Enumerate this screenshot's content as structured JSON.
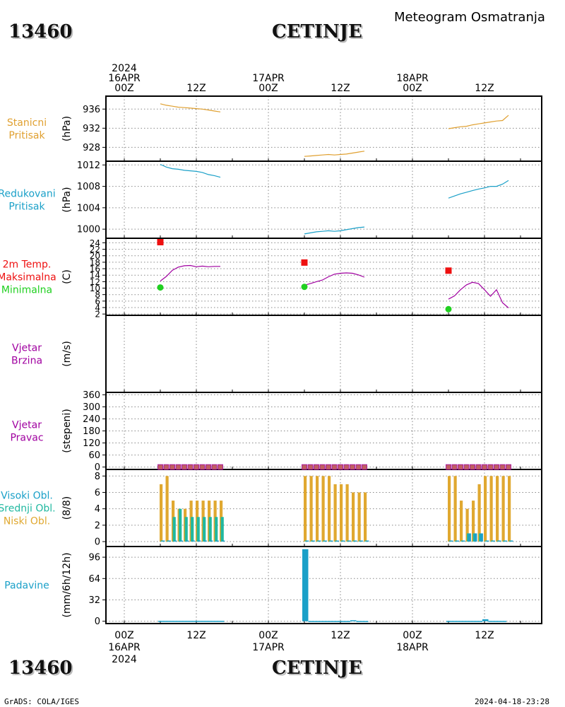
{
  "header": {
    "station_id": "13460",
    "station_name": "CETINJE",
    "chart_title": "Meteogram Osmatranja"
  },
  "footer": {
    "station_id": "13460",
    "station_name": "CETINJE",
    "credit": "GrADS: COLA/IGES",
    "timestamp": "2024-04-18-23:28"
  },
  "time_axis": {
    "top_labels": [
      {
        "lines": [
          "2024",
          "16APR",
          "00Z"
        ]
      },
      {
        "lines": [
          "12Z"
        ]
      },
      {
        "lines": [
          "17APR",
          "00Z"
        ]
      },
      {
        "lines": [
          "12Z"
        ]
      },
      {
        "lines": [
          "18APR",
          "00Z"
        ]
      },
      {
        "lines": [
          "12Z"
        ]
      }
    ],
    "bottom_labels": [
      {
        "lines": [
          "00Z",
          "16APR",
          "2024"
        ]
      },
      {
        "lines": [
          "12Z"
        ]
      },
      {
        "lines": [
          "00Z",
          "17APR"
        ]
      },
      {
        "lines": [
          "12Z"
        ]
      },
      {
        "lines": [
          "00Z",
          "18APR"
        ]
      },
      {
        "lines": [
          "12Z"
        ]
      }
    ]
  },
  "colors": {
    "station_pressure": "#E0A030",
    "reduced_pressure": "#1AA0C8",
    "temperature": "#A000A0",
    "t_max": "#EE1010",
    "t_min": "#20D020",
    "wind": "#A000A0",
    "cloud_low": "#E0A830",
    "cloud_mid": "#20B8A0",
    "cloud_high": "#1AA0C8",
    "precip": "#1AA0C8",
    "grid": "#888888"
  },
  "panels": [
    {
      "key": "stp",
      "labels": [
        "Stanicni",
        "Pritisak"
      ],
      "label_colors": [
        "#E0A030",
        "#E0A030"
      ],
      "unit": "(hPa)",
      "ticks": [
        "936",
        "932",
        "928"
      ]
    },
    {
      "key": "rp",
      "labels": [
        "Redukovani",
        "Pritisak"
      ],
      "label_colors": [
        "#1AA0C8",
        "#1AA0C8"
      ],
      "unit": "(hPa)",
      "ticks": [
        "1012",
        "1008",
        "1004",
        "1000"
      ]
    },
    {
      "key": "t",
      "labels": [
        "2m Temp.",
        "Maksimalna",
        "Minimalna"
      ],
      "label_colors": [
        "#EE1010",
        "#EE1010",
        "#20D020"
      ],
      "unit": "(C)",
      "ticks": [
        "24",
        "22",
        "20",
        "18",
        "16",
        "14",
        "12",
        "10",
        "8",
        "6",
        "4",
        "2"
      ]
    },
    {
      "key": "ws",
      "labels": [
        "Vjetar",
        "Brzina"
      ],
      "label_colors": [
        "#A000A0",
        "#A000A0"
      ],
      "unit": "(m/s)",
      "ticks": []
    },
    {
      "key": "wd",
      "labels": [
        "Vjetar",
        "Pravac"
      ],
      "label_colors": [
        "#A000A0",
        "#A000A0"
      ],
      "unit": "(stepeni)",
      "ticks": [
        "360",
        "300",
        "240",
        "180",
        "120",
        "60",
        "0"
      ]
    },
    {
      "key": "cl",
      "labels": [
        "Visoki Obl.",
        "Srednji Obl.",
        "Niski Obl."
      ],
      "label_colors": [
        "#1AA0C8",
        "#20B8A0",
        "#E0A830"
      ],
      "unit": "(8/8)",
      "ticks": [
        "8",
        "6",
        "4",
        "2",
        "0"
      ]
    },
    {
      "key": "pr",
      "labels": [
        "Padavine"
      ],
      "label_colors": [
        "#1AA0C8"
      ],
      "unit": "(mm/6h/12h)",
      "ticks": [
        "96",
        "64",
        "32",
        "0"
      ]
    }
  ],
  "chart_data": [
    {
      "type": "line",
      "title": "Stanicni Pritisak",
      "ylabel": "(hPa)",
      "x_unit": "hours since 16APR 00Z",
      "ylim": [
        925.1,
        938.7
      ],
      "segments": [
        {
          "x": [
            6,
            7,
            8,
            9,
            10,
            11,
            12,
            13,
            14,
            15,
            16
          ],
          "y": [
            937.1,
            936.8,
            936.6,
            936.4,
            936.3,
            936.2,
            936.1,
            936.0,
            935.8,
            935.6,
            935.4
          ]
        },
        {
          "x": [
            30,
            31,
            32,
            33,
            34,
            35,
            36,
            37,
            38,
            39,
            40
          ],
          "y": [
            926.1,
            926.2,
            926.3,
            926.4,
            926.5,
            926.4,
            926.5,
            926.6,
            926.8,
            927.0,
            927.2
          ]
        },
        {
          "x": [
            54,
            55,
            56,
            57,
            58,
            59,
            60,
            61,
            62,
            63,
            64
          ],
          "y": [
            931.9,
            932.1,
            932.3,
            932.4,
            932.7,
            932.9,
            933.1,
            933.3,
            933.5,
            933.6,
            934.7
          ]
        }
      ]
    },
    {
      "type": "line",
      "title": "Redukovani Pritisak",
      "ylabel": "(hPa)",
      "x_unit": "hours since 16APR 00Z",
      "ylim": [
        998.3,
        1012.7
      ],
      "segments": [
        {
          "x": [
            6,
            7,
            8,
            9,
            10,
            11,
            12,
            13,
            14,
            15,
            16
          ],
          "y": [
            1012.1,
            1011.6,
            1011.3,
            1011.2,
            1011.0,
            1010.9,
            1010.8,
            1010.6,
            1010.2,
            1010.0,
            1009.7
          ]
        },
        {
          "x": [
            30,
            31,
            32,
            33,
            34,
            35,
            36,
            37,
            38,
            39,
            40
          ],
          "y": [
            999.1,
            999.3,
            999.5,
            999.6,
            999.7,
            999.6,
            999.7,
            999.9,
            1000.1,
            1000.3,
            1000.4
          ]
        },
        {
          "x": [
            54,
            55,
            56,
            57,
            58,
            59,
            60,
            61,
            62,
            63,
            64
          ],
          "y": [
            1005.8,
            1006.2,
            1006.6,
            1006.9,
            1007.2,
            1007.5,
            1007.7,
            1008.0,
            1008.0,
            1008.4,
            1009.1
          ]
        }
      ]
    },
    {
      "type": "line",
      "title": "2m Temp.",
      "ylabel": "(C)",
      "x_unit": "hours since 16APR 00Z",
      "ylim": [
        1.6,
        25.4
      ],
      "segments": [
        {
          "x": [
            6,
            7,
            8,
            9,
            10,
            11,
            12,
            13,
            14,
            15,
            16
          ],
          "y": [
            12.2,
            13.6,
            15.5,
            16.5,
            16.9,
            17.0,
            16.6,
            16.8,
            16.6,
            16.7,
            16.7
          ]
        },
        {
          "x": [
            30,
            31,
            32,
            33,
            34,
            35,
            36,
            37,
            38,
            39,
            40
          ],
          "y": [
            10.9,
            11.4,
            12.0,
            12.5,
            13.5,
            14.3,
            14.6,
            14.7,
            14.6,
            14.1,
            13.4
          ]
        },
        {
          "x": [
            54,
            55,
            56,
            57,
            58,
            59,
            60,
            61,
            62,
            63,
            64
          ],
          "y": [
            6.6,
            7.6,
            9.5,
            11.0,
            11.8,
            11.4,
            9.5,
            7.5,
            9.5,
            5.5,
            3.9
          ]
        }
      ],
      "t_max": {
        "x": [
          6,
          30,
          54
        ],
        "y": [
          24.2,
          17.9,
          15.4
        ]
      },
      "t_min": {
        "x": [
          6,
          30,
          54
        ],
        "y": [
          10.2,
          10.4,
          3.5
        ]
      }
    },
    {
      "type": "line",
      "title": "Vjetar Brzina",
      "ylabel": "(m/s)",
      "segments": []
    },
    {
      "type": "scatter",
      "title": "Vjetar Pravac",
      "ylabel": "(stepeni)",
      "x_unit": "hours since 16APR 00Z",
      "ylim": [
        -12,
        372
      ],
      "x": [
        6,
        7,
        8,
        9,
        10,
        11,
        12,
        13,
        14,
        15,
        16,
        30,
        31,
        32,
        33,
        34,
        35,
        36,
        37,
        38,
        39,
        40,
        54,
        55,
        56,
        57,
        58,
        59,
        60,
        61,
        62,
        63,
        64
      ],
      "y": [
        0,
        0,
        0,
        0,
        0,
        0,
        0,
        0,
        0,
        0,
        0,
        0,
        0,
        0,
        0,
        0,
        0,
        0,
        0,
        0,
        0,
        0,
        0,
        0,
        0,
        0,
        0,
        0,
        0,
        0,
        0,
        0,
        0
      ]
    },
    {
      "type": "bar",
      "title": "Visoki Obl. / Srednji Obl. / Niski Obl.",
      "ylabel": "(8/8)",
      "x_unit": "hours since 16APR 00Z",
      "ylim": [
        -0.6,
        8.8
      ],
      "x": [
        6,
        7,
        8,
        9,
        10,
        11,
        12,
        13,
        14,
        15,
        16,
        30,
        31,
        32,
        33,
        34,
        35,
        36,
        37,
        38,
        39,
        40,
        54,
        55,
        56,
        57,
        58,
        59,
        60,
        61,
        62,
        63,
        64
      ],
      "series": [
        {
          "name": "Niski Obl.",
          "values": [
            7,
            8,
            5,
            4,
            4,
            5,
            5,
            5,
            5,
            5,
            5,
            8,
            8,
            8,
            8,
            8,
            7,
            7,
            7,
            6,
            6,
            6,
            8,
            8,
            5,
            4,
            5,
            7,
            8,
            8,
            8,
            8,
            8
          ]
        },
        {
          "name": "Srednji Obl.",
          "values": [
            0,
            0,
            3,
            4,
            3,
            3,
            3,
            3,
            3,
            3,
            3,
            0,
            0,
            0,
            0,
            0,
            0,
            0,
            0,
            0,
            0,
            0,
            0,
            0,
            0,
            1,
            1,
            1,
            0,
            0,
            0,
            0,
            0
          ]
        },
        {
          "name": "Visoki Obl.",
          "values": [
            0,
            0,
            0,
            0,
            0,
            0,
            0,
            0,
            0,
            0,
            0,
            0,
            0,
            0,
            0,
            0,
            0,
            0,
            0,
            0,
            0,
            0,
            0,
            0,
            0,
            1,
            1,
            1,
            0,
            0,
            0,
            0,
            0
          ]
        }
      ]
    },
    {
      "type": "bar",
      "title": "Padavine",
      "ylabel": "(mm/6h/12h)",
      "x_unit": "hours since 16APR 00Z",
      "ylim": [
        -3.5,
        112
      ],
      "bars": [
        {
          "x": 6,
          "width": 11,
          "value": 0.6
        },
        {
          "x": 30,
          "width": 1,
          "value": 108
        },
        {
          "x": 31,
          "width": 7,
          "value": 0.4
        },
        {
          "x": 38,
          "width": 1,
          "value": 1.5
        },
        {
          "x": 39,
          "width": 2,
          "value": 0.4
        },
        {
          "x": 54,
          "width": 6,
          "value": 0.5
        },
        {
          "x": 60,
          "width": 1,
          "value": 3.0
        },
        {
          "x": 61,
          "width": 3,
          "value": 0.5
        }
      ]
    }
  ]
}
